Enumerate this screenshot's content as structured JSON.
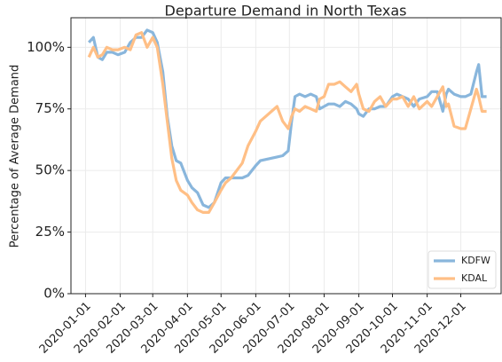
{
  "chart_data": {
    "type": "line",
    "title": "Departure Demand in North Texas",
    "y_label": "Percentage of Average Demand",
    "x": [
      "2020-01-04",
      "2020-01-08",
      "2020-01-12",
      "2020-01-16",
      "2020-01-20",
      "2020-01-25",
      "2020-01-30",
      "2020-02-05",
      "2020-02-10",
      "2020-02-15",
      "2020-02-20",
      "2020-02-25",
      "2020-03-01",
      "2020-03-05",
      "2020-03-10",
      "2020-03-14",
      "2020-03-18",
      "2020-03-22",
      "2020-03-26",
      "2020-04-01",
      "2020-04-05",
      "2020-04-10",
      "2020-04-15",
      "2020-04-20",
      "2020-04-25",
      "2020-05-01",
      "2020-05-05",
      "2020-05-10",
      "2020-05-15",
      "2020-05-20",
      "2020-05-25",
      "2020-06-01",
      "2020-06-05",
      "2020-06-10",
      "2020-06-15",
      "2020-06-20",
      "2020-06-25",
      "2020-06-30",
      "2020-07-03",
      "2020-07-06",
      "2020-07-10",
      "2020-07-15",
      "2020-07-20",
      "2020-07-25",
      "2020-07-28",
      "2020-08-01",
      "2020-08-05",
      "2020-08-10",
      "2020-08-15",
      "2020-08-20",
      "2020-08-25",
      "2020-08-30",
      "2020-09-01",
      "2020-09-05",
      "2020-09-10",
      "2020-09-15",
      "2020-09-20",
      "2020-09-25",
      "2020-10-01",
      "2020-10-05",
      "2020-10-10",
      "2020-10-15",
      "2020-10-20",
      "2020-10-25",
      "2020-11-01",
      "2020-11-05",
      "2020-11-10",
      "2020-11-15",
      "2020-11-18",
      "2020-11-20",
      "2020-11-25",
      "2020-12-01",
      "2020-12-05",
      "2020-12-10",
      "2020-12-15",
      "2020-12-17",
      "2020-12-20",
      "2020-12-24"
    ],
    "series": [
      {
        "name": "KDFW",
        "color": "#89b6dc",
        "values": [
          102,
          104,
          96,
          95,
          98,
          98,
          97,
          98,
          102,
          104,
          104,
          107,
          106,
          102,
          90,
          72,
          60,
          54,
          53,
          46,
          43,
          41,
          36,
          35,
          37,
          45,
          47,
          47,
          47,
          47,
          48,
          52,
          54,
          54.5,
          55,
          55.5,
          56,
          58,
          70,
          80,
          81,
          80,
          81,
          80,
          75,
          76,
          77,
          77,
          76,
          78,
          77,
          75,
          73,
          72,
          75,
          75,
          76,
          76,
          80,
          81,
          80,
          79,
          76,
          79,
          80,
          82,
          82,
          74,
          81,
          83,
          81,
          80,
          80,
          81,
          90,
          93,
          80,
          80
        ]
      },
      {
        "name": "KDAL",
        "color": "#ffbf86",
        "values": [
          96,
          100,
          96,
          97,
          100,
          99,
          99,
          100,
          99,
          105,
          106,
          100,
          104,
          100,
          85,
          70,
          55,
          46,
          42,
          40,
          37,
          34,
          33,
          33,
          37,
          42,
          45,
          47,
          50,
          53,
          60,
          66,
          70,
          72,
          74,
          76,
          70,
          67,
          72,
          75,
          74,
          76,
          75,
          74,
          79,
          80,
          85,
          85,
          86,
          84,
          82,
          85,
          81,
          75,
          74,
          78,
          80,
          76,
          79,
          79,
          80,
          76,
          80,
          75,
          78,
          76,
          80,
          84,
          76,
          77,
          68,
          67,
          67,
          75,
          83,
          80,
          74,
          74
        ]
      }
    ],
    "xlim": [
      "2019-12-19",
      "2021-01-06"
    ],
    "xticks": [
      "2020-01-01",
      "2020-02-01",
      "2020-03-01",
      "2020-04-01",
      "2020-05-01",
      "2020-06-01",
      "2020-07-01",
      "2020-08-01",
      "2020-09-01",
      "2020-10-01",
      "2020-11-01",
      "2020-12-01"
    ],
    "ylim": [
      0,
      112
    ],
    "yticks": [
      {
        "value": 0,
        "label": "0%"
      },
      {
        "value": 25,
        "label": "25%"
      },
      {
        "value": 50,
        "label": "50%"
      },
      {
        "value": 75,
        "label": "75%"
      },
      {
        "value": 100,
        "label": "100%"
      }
    ],
    "grid": true,
    "legend": "lower right"
  }
}
